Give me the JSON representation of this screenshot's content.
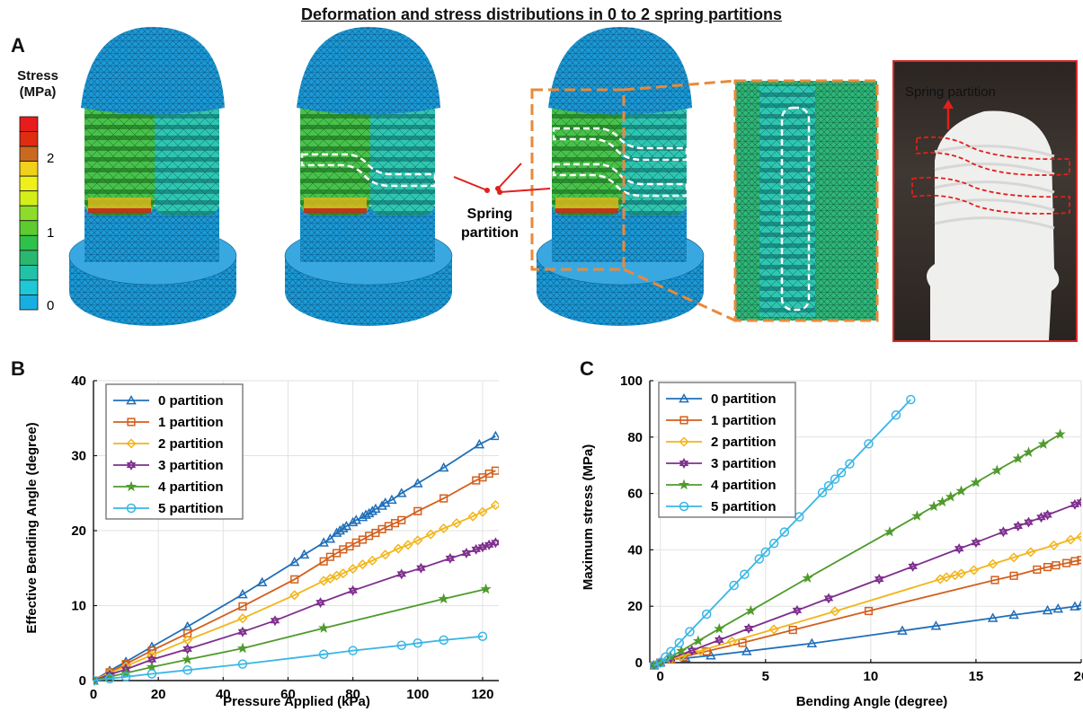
{
  "figure_title": "Deformation and stress distributions in 0 to 2 spring partitions",
  "panel_a": {
    "letter": "A",
    "colorbar": {
      "title_line1": "Stress",
      "title_line2": "(MPa)",
      "ticks": [
        "2",
        "1",
        "0"
      ],
      "colors": [
        "#e81c1c",
        "#e02c10",
        "#c96a20",
        "#f0d01a",
        "#eef01a",
        "#d4ee1a",
        "#8edc2a",
        "#5ccc2e",
        "#2fc24a",
        "#2ab870",
        "#22c2a8",
        "#1ec8d6",
        "#19aee0"
      ]
    },
    "callout_label_line1": "Spring",
    "callout_label_line2": "partition",
    "photo_label": "Spring partition"
  },
  "chart_data": [
    {
      "panel": "B",
      "type": "line",
      "xlabel": "Pressure Applied (kPa)",
      "ylabel": "Effective Bending Angle (degree)",
      "xlim": [
        0,
        125
      ],
      "ylim": [
        0,
        40
      ],
      "xticks": [
        0,
        20,
        40,
        60,
        80,
        100,
        120
      ],
      "yticks": [
        0,
        10,
        20,
        30,
        40
      ],
      "grid": true,
      "legend_position": "top-left",
      "series": [
        {
          "name": "0 partition",
          "color": "#1f6fb8",
          "marker": "triangle",
          "x": [
            0,
            5,
            10,
            18,
            29,
            46,
            52,
            62,
            65,
            71,
            73,
            75,
            76,
            77,
            78,
            80,
            81,
            83,
            84,
            85,
            86,
            87,
            89,
            90,
            92,
            95,
            100,
            108,
            119,
            124
          ],
          "y": [
            0,
            1.3,
            2.5,
            4.5,
            7.2,
            11.5,
            13.1,
            15.8,
            16.8,
            18.4,
            18.9,
            19.7,
            20.0,
            20.3,
            20.6,
            21.1,
            21.4,
            21.8,
            22.1,
            22.3,
            22.6,
            22.9,
            23.3,
            23.7,
            24.1,
            25.0,
            26.3,
            28.4,
            31.5,
            32.6
          ]
        },
        {
          "name": "1 partition",
          "color": "#d35f1c",
          "marker": "square",
          "x": [
            0,
            5,
            10,
            18,
            29,
            46,
            62,
            71,
            73,
            75,
            77,
            79,
            81,
            83,
            85,
            87,
            89,
            91,
            93,
            95,
            100,
            108,
            118,
            120,
            122,
            124
          ],
          "y": [
            0,
            1.1,
            2.2,
            4.0,
            6.3,
            9.9,
            13.5,
            15.9,
            16.5,
            17.0,
            17.5,
            17.9,
            18.4,
            18.8,
            19.3,
            19.7,
            20.2,
            20.6,
            21.0,
            21.4,
            22.6,
            24.3,
            26.7,
            27.1,
            27.6,
            28.0
          ]
        },
        {
          "name": "2 partition",
          "color": "#f2b51b",
          "marker": "diamond",
          "x": [
            0,
            5,
            10,
            18,
            29,
            46,
            62,
            71,
            73,
            75,
            77,
            80,
            83,
            86,
            90,
            94,
            97,
            100,
            104,
            108,
            112,
            117,
            120,
            124
          ],
          "y": [
            0,
            1.0,
            1.9,
            3.4,
            5.4,
            8.3,
            11.4,
            13.3,
            13.6,
            14.0,
            14.3,
            14.9,
            15.5,
            16.0,
            16.8,
            17.6,
            18.1,
            18.7,
            19.5,
            20.3,
            21.0,
            21.9,
            22.5,
            23.4
          ]
        },
        {
          "name": "3 partition",
          "color": "#7e2f8e",
          "marker": "hexagram",
          "x": [
            0,
            5,
            10,
            18,
            29,
            46,
            56,
            70,
            80,
            95,
            101,
            110,
            115,
            118,
            120,
            122,
            124
          ],
          "y": [
            0,
            0.8,
            1.5,
            2.8,
            4.2,
            6.5,
            8.0,
            10.4,
            12.0,
            14.2,
            15.0,
            16.3,
            17.0,
            17.5,
            17.8,
            18.1,
            18.4
          ]
        },
        {
          "name": "4 partition",
          "color": "#4f9b2c",
          "marker": "star",
          "x": [
            0,
            5,
            10,
            18,
            29,
            46,
            71,
            108,
            121
          ],
          "y": [
            0,
            0.5,
            1.0,
            1.8,
            2.8,
            4.3,
            7.0,
            10.9,
            12.2
          ]
        },
        {
          "name": "5 partition",
          "color": "#39b6e6",
          "marker": "circle",
          "x": [
            0,
            5,
            10,
            18,
            29,
            46,
            71,
            80,
            95,
            100,
            108,
            120
          ],
          "y": [
            0,
            0.25,
            0.5,
            0.9,
            1.4,
            2.2,
            3.5,
            4.0,
            4.7,
            5.0,
            5.4,
            5.9
          ]
        }
      ]
    },
    {
      "panel": "C",
      "type": "line",
      "xlabel": "Bending Angle (degree)",
      "ylabel": "Maximum stress (MPa)",
      "xlim": [
        -0.5,
        20
      ],
      "ylim": [
        0,
        100
      ],
      "xticks": [
        0,
        5,
        10,
        15,
        20
      ],
      "yticks": [
        0,
        20,
        40,
        60,
        80,
        100
      ],
      "grid": true,
      "legend_position": "top-left",
      "series": [
        {
          "name": "0 partition",
          "color": "#1f6fb8",
          "marker": "triangle",
          "x": [
            -0.3,
            0,
            0.5,
            1.2,
            2.4,
            4.1,
            7.2,
            11.5,
            13.1,
            15.8,
            16.8,
            18.4,
            18.9,
            19.7,
            20.0
          ],
          "y": [
            -1.0,
            0,
            1.2,
            1.6,
            2.5,
            4.0,
            6.8,
            11.3,
            13.0,
            15.8,
            16.9,
            18.5,
            19.1,
            19.9,
            20.3
          ]
        },
        {
          "name": "1 partition",
          "color": "#d35f1c",
          "marker": "square",
          "x": [
            -0.3,
            0,
            0.5,
            1.1,
            2.2,
            3.9,
            6.3,
            9.9,
            15.9,
            16.8,
            17.9,
            18.4,
            18.8,
            19.3,
            19.7,
            20.0
          ],
          "y": [
            -1.0,
            0,
            1.1,
            2.1,
            4.0,
            7.0,
            11.6,
            18.3,
            29.3,
            30.8,
            33.0,
            33.9,
            34.5,
            35.3,
            36.0,
            36.4
          ]
        },
        {
          "name": "2 partition",
          "color": "#f2b51b",
          "marker": "diamond",
          "x": [
            -0.3,
            0,
            0.5,
            1.0,
            1.9,
            3.4,
            5.4,
            8.3,
            13.3,
            13.6,
            14.0,
            14.3,
            14.9,
            15.8,
            16.8,
            17.6,
            18.7,
            19.5,
            20.0
          ],
          "y": [
            -1.0,
            0,
            1.2,
            2.2,
            4.2,
            7.5,
            11.8,
            18.2,
            29.6,
            30.3,
            31.0,
            31.6,
            32.8,
            35.0,
            37.3,
            39.2,
            41.6,
            43.6,
            44.7
          ]
        },
        {
          "name": "3 partition",
          "color": "#7e2f8e",
          "marker": "hexagram",
          "x": [
            -0.3,
            0,
            0.5,
            1.5,
            2.8,
            4.2,
            6.5,
            8.0,
            10.4,
            12.0,
            14.2,
            15.0,
            16.3,
            17.0,
            17.5,
            18.1,
            18.4,
            19.7,
            20.0
          ],
          "y": [
            -1.0,
            0,
            1.5,
            4.3,
            8.0,
            12.1,
            18.5,
            22.8,
            29.6,
            34.1,
            40.4,
            42.6,
            46.4,
            48.4,
            49.8,
            51.5,
            52.4,
            56.1,
            56.9
          ]
        },
        {
          "name": "4 partition",
          "color": "#4f9b2c",
          "marker": "star",
          "x": [
            -0.3,
            0,
            0.5,
            1.0,
            1.8,
            2.8,
            4.3,
            7.0,
            10.9,
            12.2,
            13.0,
            13.4,
            13.8,
            14.3,
            15.0,
            16.0,
            17.0,
            17.5,
            18.2,
            19.0
          ],
          "y": [
            -1.0,
            0,
            2.0,
            4.2,
            7.7,
            12.0,
            18.4,
            30.0,
            46.4,
            52.0,
            55.4,
            57.0,
            58.8,
            60.9,
            63.9,
            68.2,
            72.4,
            74.6,
            77.5,
            81.0
          ]
        },
        {
          "name": "5 partition",
          "color": "#39b6e6",
          "marker": "circle",
          "x": [
            -0.3,
            0,
            0.25,
            0.5,
            0.9,
            1.4,
            2.2,
            3.5,
            4.0,
            4.7,
            5.0,
            5.4,
            5.9,
            6.6,
            7.7,
            8.0,
            8.3,
            8.6,
            9.0,
            9.9,
            11.2,
            11.9
          ],
          "y": [
            -1.0,
            0,
            2.0,
            3.9,
            7.0,
            11.0,
            17.2,
            27.4,
            31.3,
            36.8,
            39.2,
            42.3,
            46.3,
            51.7,
            60.3,
            62.7,
            65.1,
            67.4,
            70.5,
            77.6,
            87.8,
            93.3
          ]
        }
      ]
    }
  ]
}
